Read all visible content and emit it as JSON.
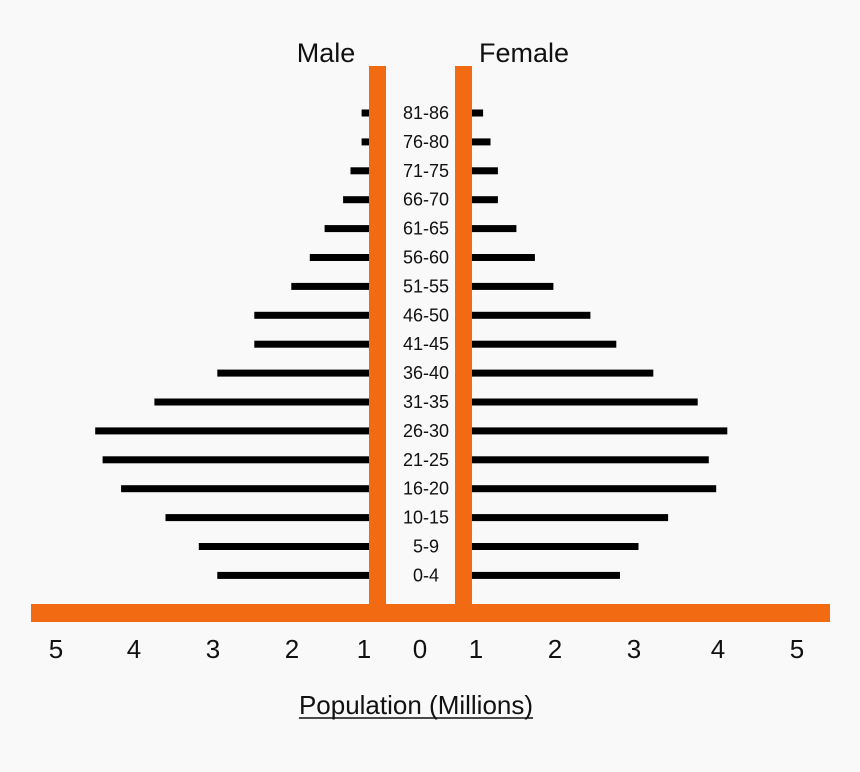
{
  "colors": {
    "accent": "#f26b12",
    "bar": "#000000",
    "background": "#f9f9f9"
  },
  "chart_data": {
    "type": "bar",
    "orientation": "horizontal-population-pyramid",
    "xlabel": "Population (Millions)",
    "ticks": {
      "male": [
        "5",
        "4",
        "3",
        "2",
        "1"
      ],
      "center": "0",
      "female": [
        "1",
        "2",
        "3",
        "4",
        "5"
      ]
    },
    "categories": [
      "81-86",
      "76-80",
      "71-75",
      "66-70",
      "61-65",
      "56-60",
      "51-55",
      "46-50",
      "41-45",
      "36-40",
      "31-35",
      "26-30",
      "21-25",
      "16-20",
      "10-15",
      "5-9",
      "0-4"
    ],
    "series": [
      {
        "name": "Male",
        "values": [
          0.1,
          0.1,
          0.25,
          0.35,
          0.6,
          0.8,
          1.05,
          1.55,
          1.55,
          2.05,
          2.9,
          3.7,
          3.6,
          3.35,
          2.75,
          2.3,
          2.05
        ]
      },
      {
        "name": "Female",
        "values": [
          0.15,
          0.25,
          0.35,
          0.35,
          0.6,
          0.85,
          1.1,
          1.6,
          1.95,
          2.45,
          3.05,
          3.45,
          3.2,
          3.3,
          2.65,
          2.25,
          2.0
        ]
      }
    ],
    "xlim": [
      0,
      5
    ],
    "legend": "none",
    "grid": false
  }
}
